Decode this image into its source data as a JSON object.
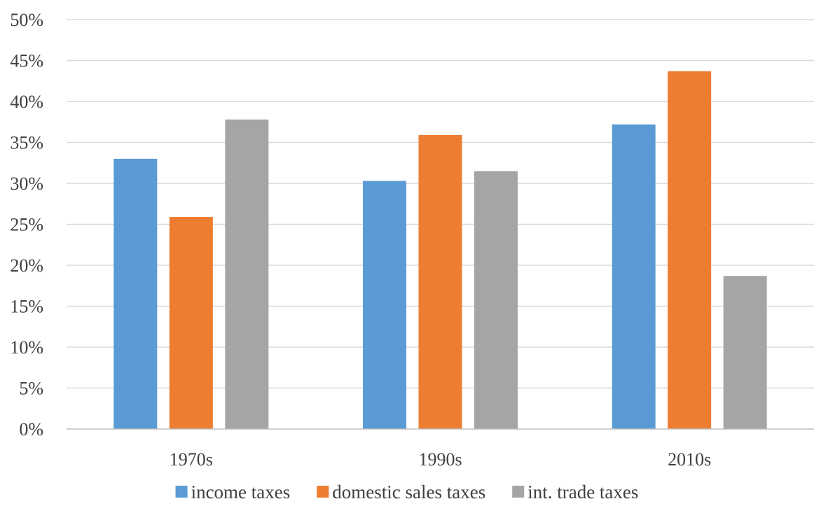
{
  "chart_data": {
    "type": "bar",
    "title": "",
    "xlabel": "",
    "ylabel": "",
    "categories": [
      "1970s",
      "1990s",
      "2010s"
    ],
    "series": [
      {
        "name": "income taxes",
        "color": "#5b9bd5",
        "values": [
          33.0,
          30.3,
          37.2
        ]
      },
      {
        "name": "domestic sales taxes",
        "color": "#ed7d31",
        "values": [
          25.9,
          35.9,
          43.7
        ]
      },
      {
        "name": "int. trade taxes",
        "color": "#a5a5a5",
        "values": [
          37.8,
          31.5,
          18.7
        ]
      }
    ],
    "ylim": [
      0,
      50
    ],
    "ytick_step": 5,
    "ytick_labels": [
      "0%",
      "5%",
      "10%",
      "15%",
      "20%",
      "25%",
      "30%",
      "35%",
      "40%",
      "45%",
      "50%"
    ],
    "grid": true,
    "legend_position": "bottom"
  }
}
